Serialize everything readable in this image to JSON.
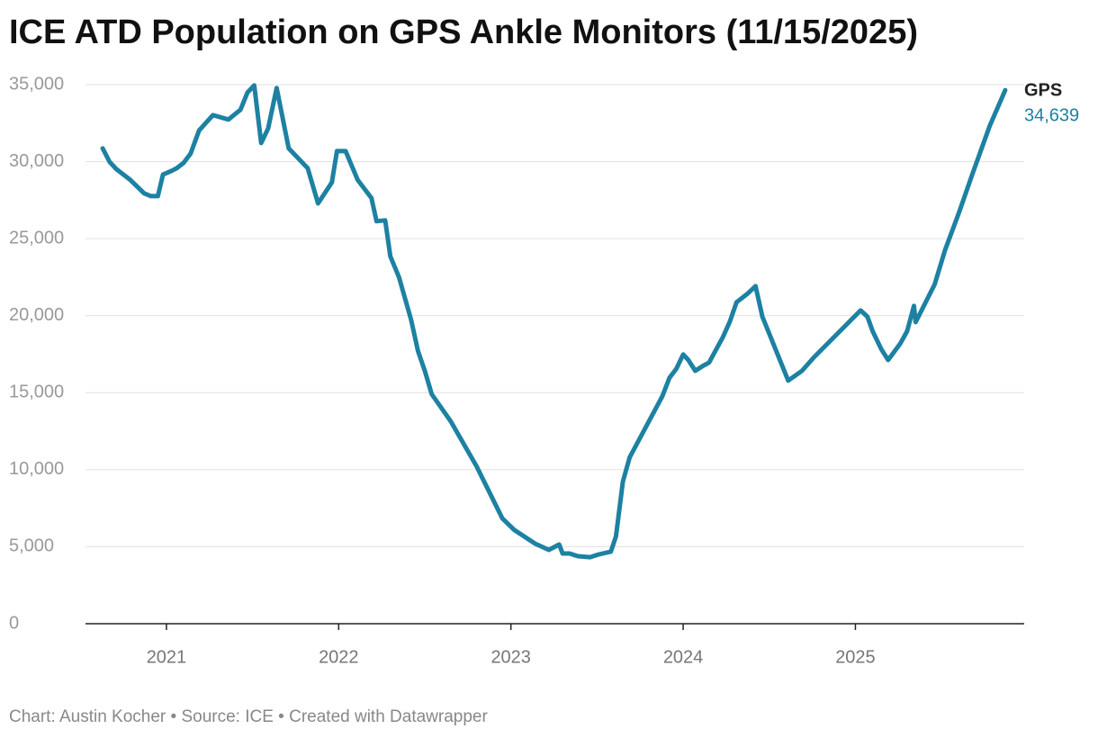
{
  "chart_data": {
    "type": "line",
    "title": "ICE ATD Population on GPS Ankle Monitors (11/15/2025)",
    "credit": "Chart: Austin Kocher • Source: ICE • Created with Datawrapper",
    "x": [
      2020.63,
      2020.67,
      2020.71,
      2020.79,
      2020.87,
      2020.91,
      2020.95,
      2020.98,
      2021.03,
      2021.06,
      2021.1,
      2021.14,
      2021.19,
      2021.27,
      2021.36,
      2021.43,
      2021.47,
      2021.51,
      2021.55,
      2021.59,
      2021.64,
      2021.71,
      2021.82,
      2021.88,
      2021.96,
      2021.99,
      2022.04,
      2022.11,
      2022.19,
      2022.22,
      2022.27,
      2022.3,
      2022.35,
      2022.42,
      2022.46,
      2022.5,
      2022.54,
      2022.65,
      2022.8,
      2022.95,
      2023.02,
      2023.14,
      2023.22,
      2023.28,
      2023.3,
      2023.34,
      2023.39,
      2023.46,
      2023.51,
      2023.58,
      2023.61,
      2023.65,
      2023.69,
      2023.88,
      2023.92,
      2023.96,
      2024.0,
      2024.03,
      2024.07,
      2024.12,
      2024.15,
      2024.19,
      2024.23,
      2024.27,
      2024.31,
      2024.37,
      2024.42,
      2024.46,
      2024.61,
      2024.69,
      2024.76,
      2025.03,
      2025.07,
      2025.1,
      2025.15,
      2025.19,
      2025.26,
      2025.3,
      2025.34,
      2025.35,
      2025.46,
      2025.52,
      2025.6,
      2025.68,
      2025.78,
      2025.87
    ],
    "series": [
      {
        "name": "GPS",
        "color": "#1d81a2",
        "values": [
          30860,
          29980,
          29510,
          28810,
          27940,
          27760,
          27760,
          29160,
          29400,
          29570,
          29920,
          30510,
          32030,
          33020,
          32730,
          33370,
          34480,
          34950,
          31210,
          32150,
          34780,
          30860,
          29570,
          27290,
          28640,
          30680,
          30680,
          28810,
          27640,
          26130,
          26190,
          23850,
          22500,
          19750,
          17710,
          16420,
          14900,
          13150,
          10230,
          6840,
          6080,
          5200,
          4790,
          5140,
          4560,
          4560,
          4380,
          4320,
          4500,
          4680,
          5670,
          9230,
          10810,
          14790,
          15960,
          16540,
          17480,
          17120,
          16420,
          16770,
          16950,
          17770,
          18590,
          19580,
          20870,
          21390,
          21920,
          19930,
          15780,
          16420,
          17300,
          20340,
          19930,
          18990,
          17830,
          17120,
          18180,
          18990,
          20630,
          19580,
          22030,
          24250,
          26650,
          29220,
          32320,
          34639
        ],
        "value_labels": [
          null,
          null,
          null,
          null,
          null,
          null,
          null,
          null,
          null,
          null,
          null,
          null,
          null,
          null,
          null,
          null,
          null,
          null,
          null,
          null,
          null,
          null,
          null,
          null,
          null,
          null,
          null,
          null,
          null,
          null,
          null,
          null,
          null,
          null,
          null,
          null,
          null,
          null,
          null,
          null,
          null,
          null,
          null,
          null,
          null,
          null,
          null,
          null,
          null,
          null,
          null,
          null,
          null,
          null,
          null,
          null,
          null,
          null,
          null,
          null,
          null,
          null,
          null,
          null,
          null,
          null,
          null,
          null,
          null,
          null,
          null,
          null,
          null,
          null,
          null,
          null,
          null,
          null,
          null,
          null,
          null,
          null,
          null,
          null,
          null,
          "34,639"
        ]
      }
    ],
    "xlim": [
      2020.53,
      2025.98
    ],
    "xticks": [
      2021,
      2022,
      2023,
      2024,
      2025
    ],
    "ylim": [
      0,
      35000
    ],
    "yticks": [
      0,
      {
        "value": 5000,
        "label": "5,000"
      },
      {
        "value": 10000,
        "label": "10,000"
      },
      {
        "value": 15000,
        "label": "15,000"
      },
      {
        "value": 20000,
        "label": "20,000"
      },
      {
        "value": 25000,
        "label": "25,000"
      },
      {
        "value": 30000,
        "label": "30,000"
      },
      {
        "value": 35000,
        "label": "35,000"
      }
    ],
    "grid": true
  }
}
